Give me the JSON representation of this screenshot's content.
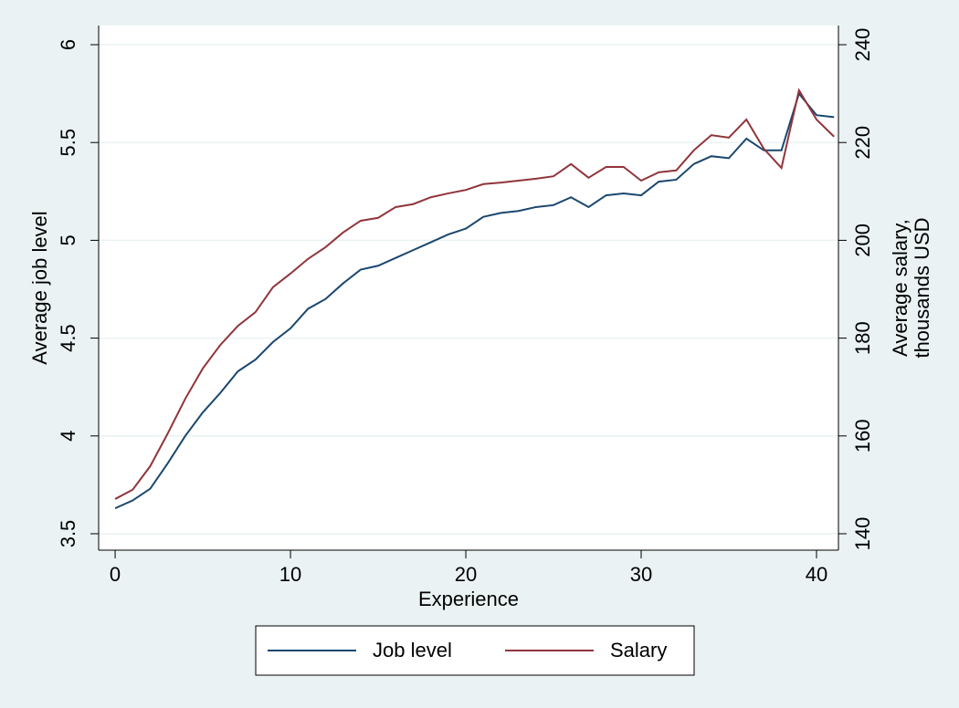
{
  "chart_data": {
    "type": "line",
    "xlabel": "Experience",
    "ylabel": "Average job level",
    "y2label": [
      "Average salary,",
      "thousands USD"
    ],
    "x": [
      0,
      1,
      2,
      3,
      4,
      5,
      6,
      7,
      8,
      9,
      10,
      11,
      12,
      13,
      14,
      15,
      16,
      17,
      18,
      19,
      20,
      21,
      22,
      23,
      24,
      25,
      26,
      27,
      28,
      29,
      30,
      31,
      32,
      33,
      34,
      35,
      36,
      37,
      38,
      39,
      40,
      41
    ],
    "xlim": [
      -0.94,
      41.25
    ],
    "xticks": [
      0,
      10,
      20,
      30,
      40
    ],
    "ylim": [
      3.416,
      6.098
    ],
    "yticks": [
      3.5,
      4,
      4.5,
      5,
      5.5,
      6
    ],
    "y2lim": [
      136.64,
      243.92
    ],
    "y2ticks": [
      140,
      160,
      180,
      200,
      220,
      240
    ],
    "grid": true,
    "legend": "bottom",
    "series": [
      {
        "name": "Job level",
        "color": "#1a476f",
        "values": [
          3.63,
          3.67,
          3.73,
          3.86,
          4.0,
          4.12,
          4.22,
          4.33,
          4.39,
          4.48,
          4.55,
          4.65,
          4.7,
          4.78,
          4.85,
          4.87,
          4.91,
          4.95,
          4.99,
          5.03,
          5.06,
          5.12,
          5.14,
          5.15,
          5.17,
          5.18,
          5.22,
          5.17,
          5.23,
          5.24,
          5.23,
          5.3,
          5.31,
          5.39,
          5.43,
          5.42,
          5.52,
          5.46,
          5.46,
          5.75,
          5.64,
          5.63
        ]
      },
      {
        "name": "Salary",
        "color": "#90353b",
        "axis": "y2",
        "values": [
          147.1,
          149.0,
          153.8,
          160.5,
          167.6,
          173.8,
          178.6,
          182.5,
          185.3,
          190.4,
          193.2,
          196.2,
          198.6,
          201.6,
          204.0,
          204.6,
          206.8,
          207.4,
          208.8,
          209.6,
          210.3,
          211.5,
          211.8,
          212.2,
          212.6,
          213.1,
          215.6,
          212.8,
          215.0,
          215.0,
          212.2,
          213.9,
          214.3,
          218.4,
          221.5,
          221.0,
          224.7,
          218.7,
          214.8,
          230.7,
          224.7,
          221.2
        ]
      }
    ]
  }
}
